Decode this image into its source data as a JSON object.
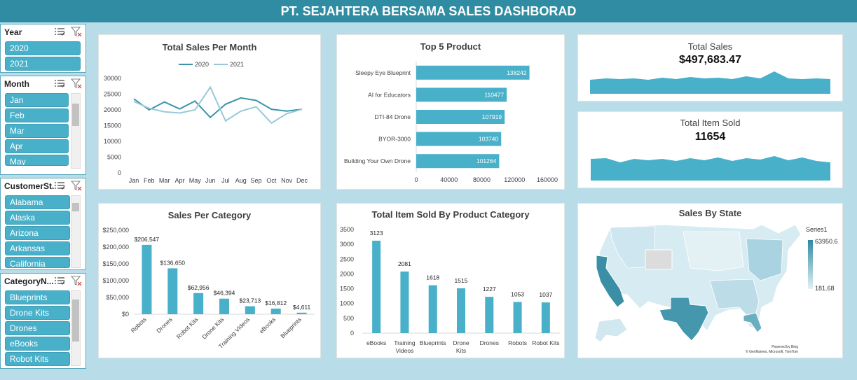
{
  "header": {
    "title": "PT. SEJAHTERA BERSAMA SALES DASHBORAD"
  },
  "slicers": {
    "year": {
      "title": "Year",
      "items": [
        "2020",
        "2021"
      ]
    },
    "month": {
      "title": "Month",
      "items": [
        "Jan",
        "Feb",
        "Mar",
        "Apr",
        "May"
      ]
    },
    "customer_state": {
      "title": "CustomerSt...",
      "items": [
        "Alabama",
        "Alaska",
        "Arizona",
        "Arkansas",
        "California"
      ]
    },
    "category": {
      "title": "CategoryN...",
      "items": [
        "Blueprints",
        "Drone Kits",
        "Drones",
        "eBooks",
        "Robot Kits"
      ]
    }
  },
  "colors": {
    "accent": "#49b0c9",
    "header": "#2f8ca2",
    "bg": "#b9dde8",
    "line2020": "#3a94ab",
    "line2021": "#98c9d8"
  },
  "kpi": {
    "total_sales_label": "Total Sales",
    "total_sales_value": "$497,683.47",
    "items_sold_label": "Total Item Sold",
    "items_sold_value": "11654"
  },
  "map": {
    "title": "Sales By State",
    "legend_series": "Series1",
    "legend_max": "63950.6",
    "legend_min": "181.68",
    "credit_1": "Powered by Bing",
    "credit_2": "© GeoNames, Microsoft, TomTom"
  },
  "chart_data": [
    {
      "id": "sales_per_month",
      "type": "line",
      "title": "Total Sales Per Month",
      "categories": [
        "Jan",
        "Feb",
        "Mar",
        "Apr",
        "May",
        "Jun",
        "Jul",
        "Aug",
        "Sep",
        "Oct",
        "Nov",
        "Dec"
      ],
      "series": [
        {
          "name": "2020",
          "values": [
            23500,
            20000,
            22500,
            20300,
            22800,
            17600,
            21800,
            23800,
            23000,
            20200,
            19600,
            20200
          ]
        },
        {
          "name": "2021",
          "values": [
            22700,
            20500,
            19400,
            19000,
            20000,
            27200,
            16500,
            19600,
            21000,
            15800,
            18800,
            20200
          ]
        }
      ],
      "yticks": [
        "0",
        "5000",
        "10000",
        "15000",
        "20000",
        "25000",
        "30000"
      ],
      "ylim": [
        0,
        30000
      ],
      "legend": "top"
    },
    {
      "id": "top5_product",
      "type": "bar",
      "orientation": "horizontal",
      "title": "Top 5 Product",
      "categories": [
        "Sleepy Eye Blueprint",
        "AI for Educators",
        "DTI-84 Drone",
        "BYOR-3000",
        "Building Your Own Drone"
      ],
      "values": [
        138242,
        110477,
        107919,
        103740,
        101264
      ],
      "xticks": [
        "0",
        "40000",
        "80000",
        "120000",
        "160000"
      ],
      "xlim": [
        0,
        160000
      ]
    },
    {
      "id": "sales_per_category",
      "type": "bar",
      "title": "Sales Per Category",
      "categories": [
        "Robots",
        "Drones",
        "Robot Kits",
        "Drone Kits",
        "Training Videos",
        "eBooks",
        "Blueprints"
      ],
      "values": [
        206547,
        136650,
        62956,
        46394,
        23713,
        16812,
        4611
      ],
      "labels": [
        "$206,547",
        "$136,650",
        "$62,956",
        "$46,394",
        "$23,713",
        "$16,812",
        "$4,611"
      ],
      "yticks": [
        "$0",
        "$50,000",
        "$100,000",
        "$150,000",
        "$200,000",
        "$250,000"
      ],
      "ylim": [
        0,
        250000
      ]
    },
    {
      "id": "items_by_category",
      "type": "bar",
      "title": "Total Item Sold By Product Category",
      "categories": [
        "eBooks",
        "Training Videos",
        "Blueprints",
        "Drone Kits",
        "Drones",
        "Robots",
        "Robot Kits"
      ],
      "values": [
        3123,
        2081,
        1618,
        1515,
        1227,
        1053,
        1037
      ],
      "yticks": [
        "0",
        "500",
        "1000",
        "1500",
        "2000",
        "2500",
        "3000",
        "3500"
      ],
      "ylim": [
        0,
        3500
      ]
    }
  ]
}
